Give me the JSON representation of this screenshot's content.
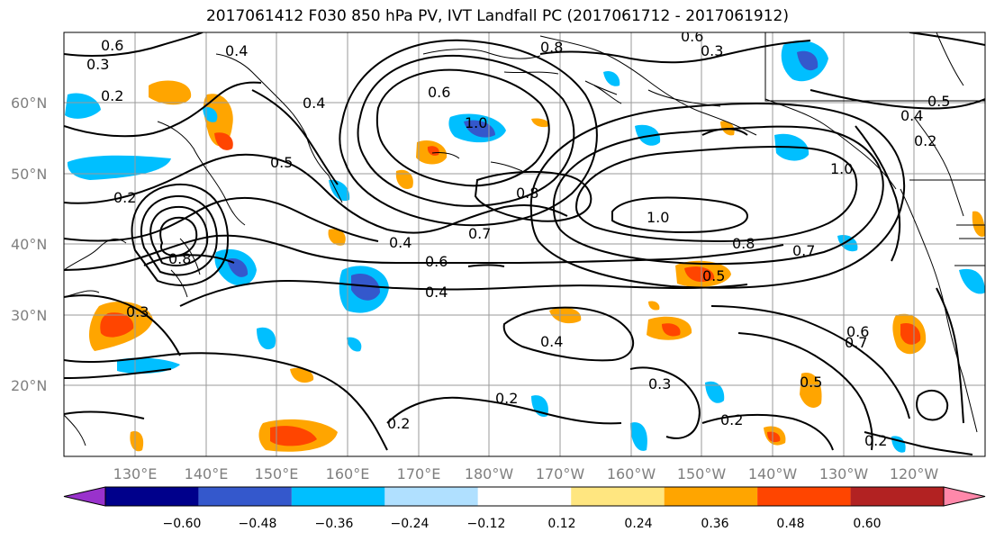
{
  "title": "2017061412 F030 850 hPa PV, IVT Landfall PC (2017061712 - 2017061912)",
  "lat_labels": [
    "60°N",
    "50°N",
    "40°N",
    "30°N",
    "20°N"
  ],
  "lon_labels": [
    "130°E",
    "140°E",
    "150°E",
    "160°E",
    "170°E",
    "180°W",
    "170°W",
    "160°W",
    "150°W",
    "140°W",
    "130°W",
    "120°W"
  ],
  "colorbar": {
    "colors": [
      "#9932cc",
      "#00008b",
      "#3458cc",
      "#00bfff",
      "#b0e0ff",
      "#ffffff",
      "#ffe680",
      "#ffa500",
      "#ff4500",
      "#b22222",
      "#ff88aa"
    ],
    "tick_labels": [
      "−0.60",
      "−0.48",
      "−0.36",
      "−0.24",
      "−0.12",
      "0.12",
      "0.24",
      "0.36",
      "0.48",
      "0.60"
    ]
  },
  "contour_labels": [
    "0.2",
    "0.3",
    "0.4",
    "0.5",
    "0.6",
    "0.7",
    "0.8",
    "1.0"
  ],
  "map_labels": [
    {
      "text": "0.3"
    },
    {
      "text": "0.6"
    },
    {
      "text": "0.4"
    },
    {
      "text": "0.2"
    },
    {
      "text": "0.5"
    },
    {
      "text": "0.2"
    },
    {
      "text": "0.3"
    },
    {
      "text": "0.8"
    },
    {
      "text": "0.6"
    },
    {
      "text": "0.4"
    },
    {
      "text": "0.5"
    },
    {
      "text": "1.0"
    },
    {
      "text": "0.8"
    },
    {
      "text": "0.8"
    },
    {
      "text": "0.7"
    },
    {
      "text": "0.4"
    },
    {
      "text": "0.6"
    },
    {
      "text": "0.4"
    },
    {
      "text": "1.0"
    },
    {
      "text": "0.8"
    },
    {
      "text": "0.7"
    },
    {
      "text": "0.5"
    },
    {
      "text": "0.4"
    },
    {
      "text": "0.3"
    },
    {
      "text": "0.2"
    },
    {
      "text": "0.2"
    },
    {
      "text": "0.2"
    },
    {
      "text": "0.5"
    },
    {
      "text": "0.2"
    },
    {
      "text": "0.6"
    },
    {
      "text": "0.4"
    },
    {
      "text": "0.2"
    },
    {
      "text": "1.0"
    },
    {
      "text": "0.3"
    },
    {
      "text": "0.6"
    },
    {
      "text": "0.7"
    }
  ]
}
